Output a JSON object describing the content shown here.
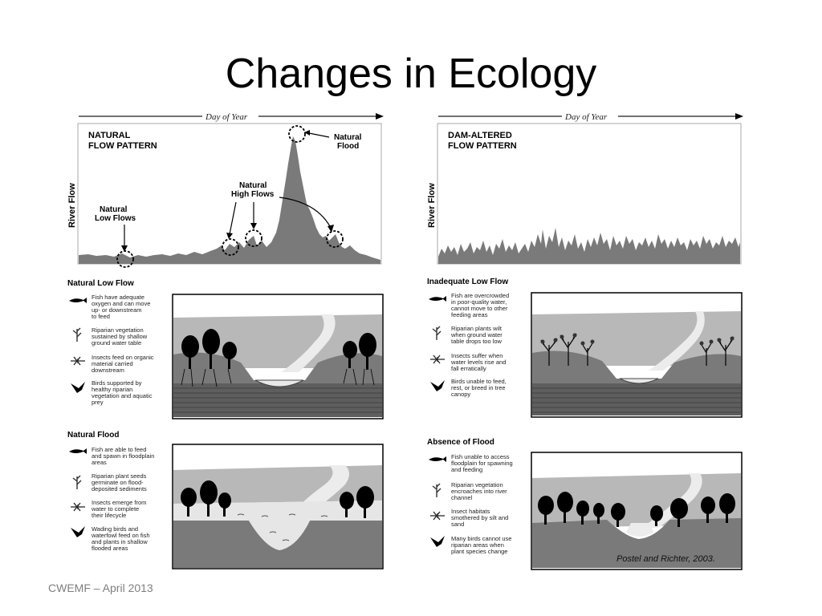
{
  "slide": {
    "title": "Changes in Ecology",
    "footer": "CWEMF – April 2013"
  },
  "colors": {
    "fill": "#7a7a7a",
    "land": "#9a9a9a",
    "sky": "#cfcfcf",
    "ink": "#000000"
  },
  "left_panel": {
    "day_of_year": "Day of Year",
    "pattern_title_line1": "NATURAL",
    "pattern_title_line2": "FLOW PATTERN",
    "ylabel": "River Flow",
    "label_low_line1": "Natural",
    "label_low_line2": "Low Flows",
    "label_high_line1": "Natural",
    "label_high_line2": "High Flows",
    "label_flood_line1": "Natural",
    "label_flood_line2": "Flood",
    "section1": {
      "heading": "Natural Low Flow",
      "items": [
        {
          "icon": "fish-icon",
          "lines": [
            "Fish have adequate",
            "oxygen and can move",
            "up- or downstream",
            "to feed"
          ]
        },
        {
          "icon": "plant-icon",
          "lines": [
            "Riparian vegetation",
            "sustained by shallow",
            "ground water table"
          ]
        },
        {
          "icon": "insect-icon",
          "lines": [
            "Insects feed on organic",
            "material carried",
            "downstream"
          ]
        },
        {
          "icon": "bird-icon",
          "lines": [
            "Birds supported by",
            "healthy riparian",
            "vegetation and aquatic",
            "prey"
          ]
        }
      ]
    },
    "section2": {
      "heading": "Natural Flood",
      "items": [
        {
          "icon": "fish-icon",
          "lines": [
            "Fish are able to feed",
            "and spawn in floodplain",
            "areas"
          ]
        },
        {
          "icon": "plant-icon",
          "lines": [
            "Riparian plant seeds",
            "germinate on flood-",
            "deposited sediments"
          ]
        },
        {
          "icon": "insect-icon",
          "lines": [
            "Insects emerge from",
            "water to complete",
            "their lifecycle"
          ]
        },
        {
          "icon": "bird-icon",
          "lines": [
            "Wading birds and",
            "waterfowl feed on fish",
            "and plants in shallow",
            "flooded areas"
          ]
        }
      ]
    }
  },
  "right_panel": {
    "day_of_year": "Day of Year",
    "pattern_title_line1": "DAM-ALTERED",
    "pattern_title_line2": "FLOW PATTERN",
    "ylabel": "River Flow",
    "section1": {
      "heading": "Inadequate Low Flow",
      "items": [
        {
          "icon": "fish-icon",
          "lines": [
            "Fish are overcrowded",
            "in poor-quality water,",
            "cannot move to other",
            "feeding areas"
          ]
        },
        {
          "icon": "plant-icon",
          "lines": [
            "Riparian plants wilt",
            "when ground water",
            "table drops too low"
          ]
        },
        {
          "icon": "insect-icon",
          "lines": [
            "Insects suffer when",
            "water levels rise and",
            "fall erratically"
          ]
        },
        {
          "icon": "bird-icon",
          "lines": [
            "Birds unable to feed,",
            "rest, or breed in tree",
            "canopy"
          ]
        }
      ]
    },
    "section2": {
      "heading": "Absence of Flood",
      "items": [
        {
          "icon": "fish-icon",
          "lines": [
            "Fish unable to access",
            "floodplain for spawning",
            "and feeding"
          ]
        },
        {
          "icon": "plant-icon",
          "lines": [
            "Riparian vegetation",
            "encroaches into river",
            "channel"
          ]
        },
        {
          "icon": "insect-icon",
          "lines": [
            "Insect habitats",
            "smothered by silt and",
            "sand"
          ]
        },
        {
          "icon": "bird-icon",
          "lines": [
            "Many birds cannot use",
            "riparian areas when",
            "plant species change"
          ]
        }
      ]
    },
    "citation": "Postel and Richter, 2003."
  }
}
